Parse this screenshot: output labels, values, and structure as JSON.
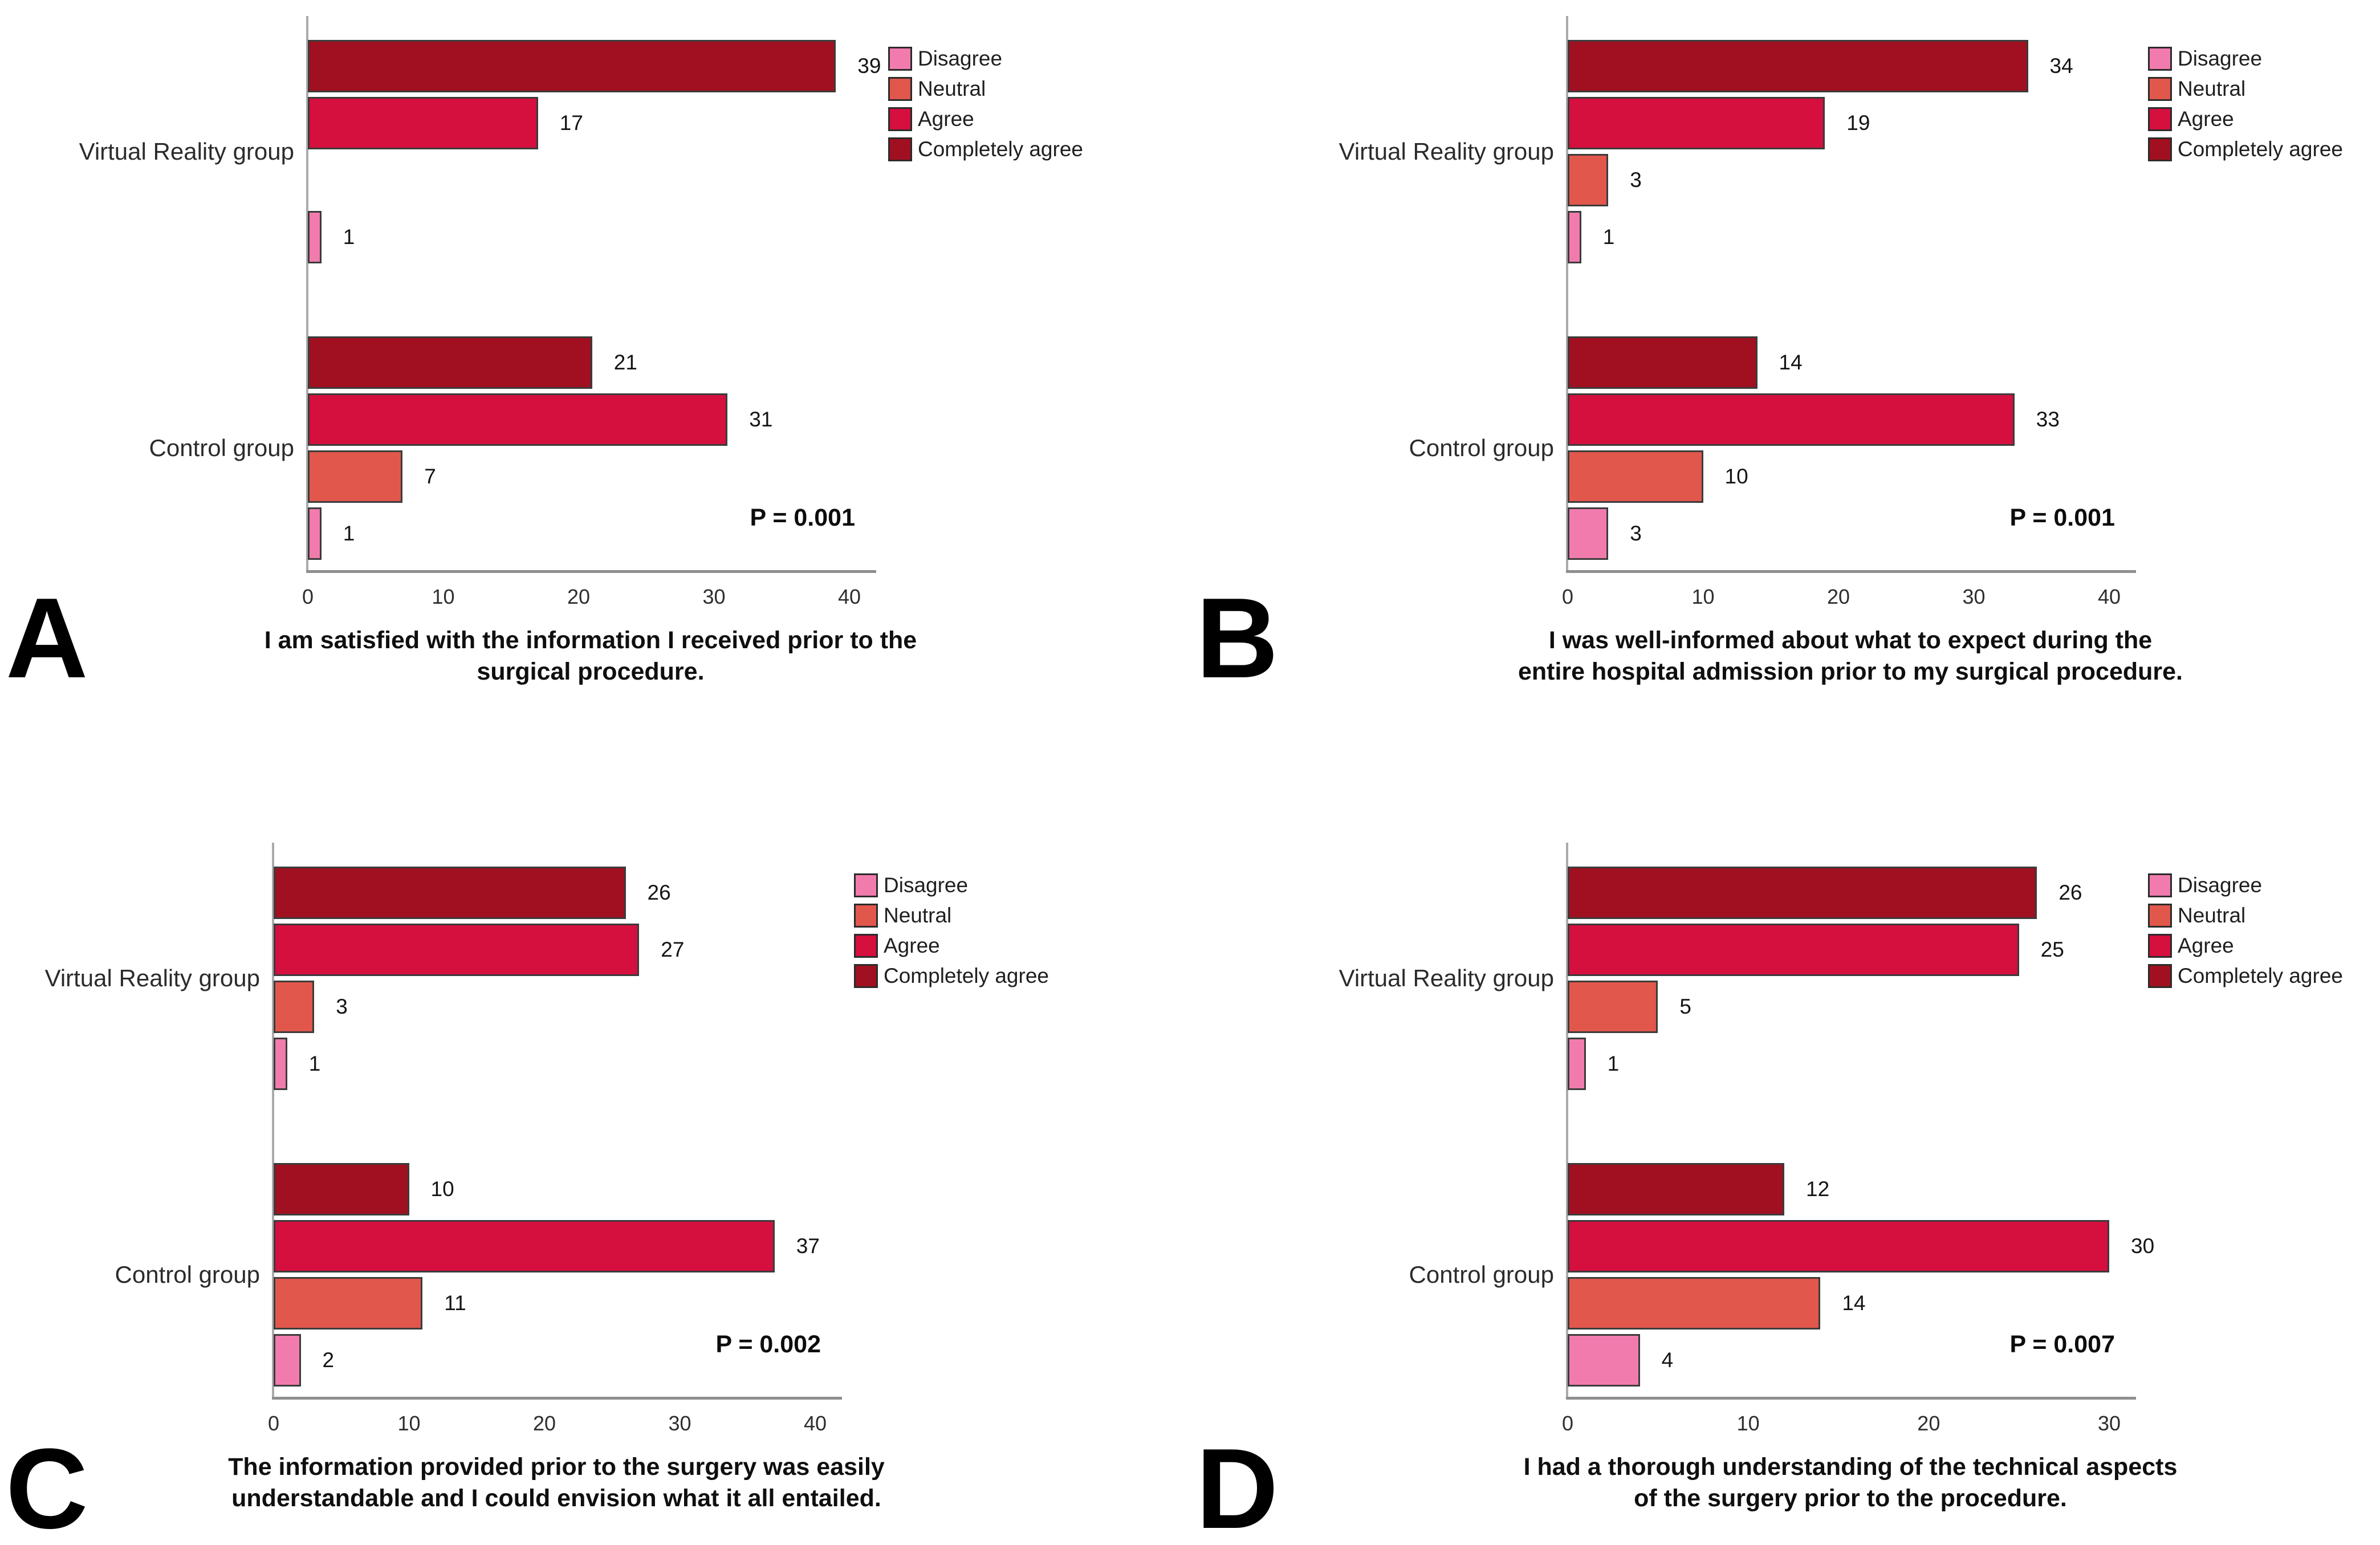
{
  "legend": {
    "items": [
      {
        "label": "Disagree",
        "color": "#F27BAE"
      },
      {
        "label": "Neutral",
        "color": "#E2574C"
      },
      {
        "label": "Agree",
        "color": "#D50F3E"
      },
      {
        "label": "Completely agree",
        "color": "#A11020"
      }
    ]
  },
  "chart_data": [
    {
      "type": "bar",
      "letter": "A",
      "orientation": "horizontal",
      "categories": [
        "Virtual Reality group",
        "Control group"
      ],
      "series": [
        {
          "name": "Disagree",
          "values": [
            1,
            1
          ]
        },
        {
          "name": "Neutral",
          "values": [
            0,
            7
          ]
        },
        {
          "name": "Agree",
          "values": [
            17,
            31
          ]
        },
        {
          "name": "Completely agree",
          "values": [
            39,
            21
          ]
        }
      ],
      "p_label": "P = 0.001",
      "x_ticks": [
        0,
        10,
        20,
        30,
        40
      ],
      "xlim": [
        0,
        42
      ],
      "title_lines": [
        "I am satisfied with the information I received prior to the",
        "surgical procedure."
      ]
    },
    {
      "type": "bar",
      "letter": "B",
      "orientation": "horizontal",
      "categories": [
        "Virtual Reality group",
        "Control group"
      ],
      "series": [
        {
          "name": "Disagree",
          "values": [
            1,
            3
          ]
        },
        {
          "name": "Neutral",
          "values": [
            3,
            10
          ]
        },
        {
          "name": "Agree",
          "values": [
            19,
            33
          ]
        },
        {
          "name": "Completely agree",
          "values": [
            34,
            14
          ]
        }
      ],
      "p_label": "P = 0.001",
      "x_ticks": [
        0,
        10,
        20,
        30,
        40
      ],
      "xlim": [
        0,
        42
      ],
      "title_lines": [
        "I was well-informed about what to expect during the",
        "entire hospital admission prior to my surgical procedure."
      ]
    },
    {
      "type": "bar",
      "letter": "C",
      "orientation": "horizontal",
      "categories": [
        "Virtual Reality group",
        "Control group"
      ],
      "series": [
        {
          "name": "Disagree",
          "values": [
            1,
            2
          ]
        },
        {
          "name": "Neutral",
          "values": [
            3,
            11
          ]
        },
        {
          "name": "Agree",
          "values": [
            27,
            37
          ]
        },
        {
          "name": "Completely agree",
          "values": [
            26,
            10
          ]
        }
      ],
      "p_label": "P = 0.002",
      "x_ticks": [
        0,
        10,
        20,
        30,
        40
      ],
      "xlim": [
        0,
        42
      ],
      "title_lines": [
        "The information provided prior to the surgery was easily",
        "understandable and I could envision what it all entailed."
      ]
    },
    {
      "type": "bar",
      "letter": "D",
      "orientation": "horizontal",
      "categories": [
        "Virtual Reality group",
        "Control group"
      ],
      "series": [
        {
          "name": "Disagree",
          "values": [
            1,
            4
          ]
        },
        {
          "name": "Neutral",
          "values": [
            5,
            14
          ]
        },
        {
          "name": "Agree",
          "values": [
            25,
            30
          ]
        },
        {
          "name": "Completely agree",
          "values": [
            26,
            12
          ]
        }
      ],
      "p_label": "P = 0.007",
      "x_ticks": [
        0,
        10,
        20,
        30
      ],
      "xlim": [
        0,
        31.5
      ],
      "title_lines": [
        "I had a thorough understanding of the technical aspects",
        "of the surgery prior to the procedure."
      ]
    }
  ]
}
